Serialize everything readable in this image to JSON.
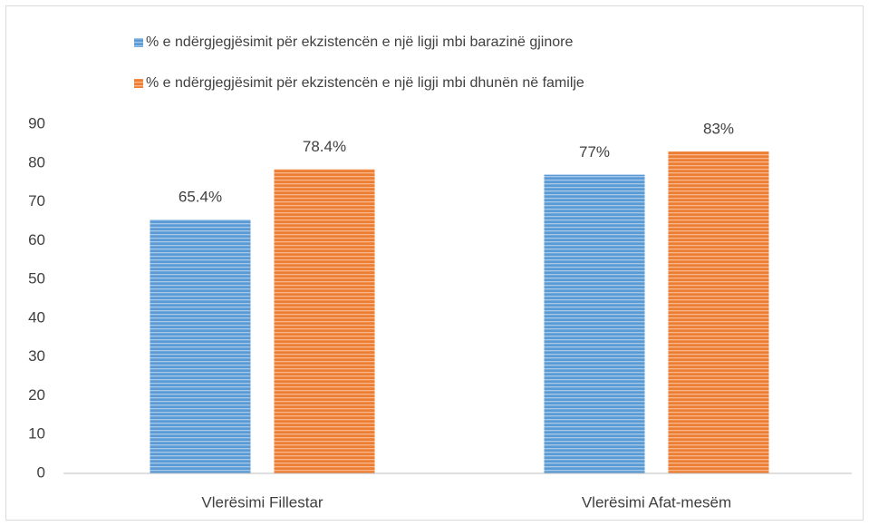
{
  "chart_data": {
    "type": "bar",
    "categories": [
      "Vlerësimi Fillestar",
      "Vlerësimi Afat-mesëm"
    ],
    "series": [
      {
        "name": "% e ndërgjegjësimit për ekzistencën e një ligji mbi barazinë gjinore",
        "color": "#5b9bd5",
        "values": [
          65.4,
          77
        ],
        "value_labels": [
          "65.4%",
          "77%"
        ]
      },
      {
        "name": "% e ndërgjegjësimit për ekzistencën e një ligji mbi dhunën në familje",
        "color": "#ed7d31",
        "values": [
          78.4,
          83
        ],
        "value_labels": [
          "78.4%",
          "83%"
        ]
      }
    ],
    "ylim": [
      0,
      90
    ],
    "yticks": [
      0,
      10,
      20,
      30,
      40,
      50,
      60,
      70,
      80,
      90
    ],
    "grid": false,
    "legend": "top"
  }
}
